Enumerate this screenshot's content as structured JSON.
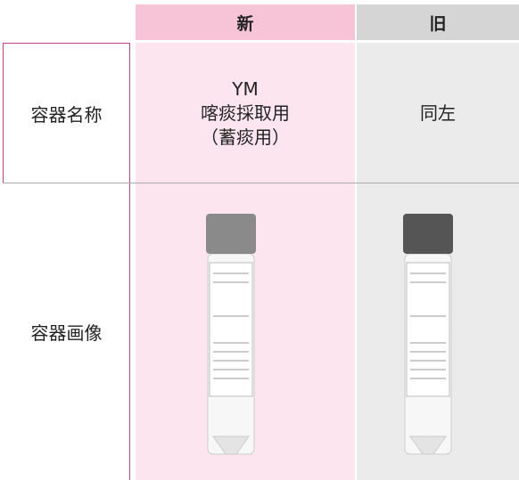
{
  "table": {
    "header": [
      "新",
      "旧"
    ],
    "rows": [
      {
        "label": "容器名称",
        "new": [
          "YM",
          "喀痰採取用",
          "（蓄痰用）"
        ],
        "old": "同左"
      },
      {
        "label": "容器画像"
      }
    ]
  }
}
